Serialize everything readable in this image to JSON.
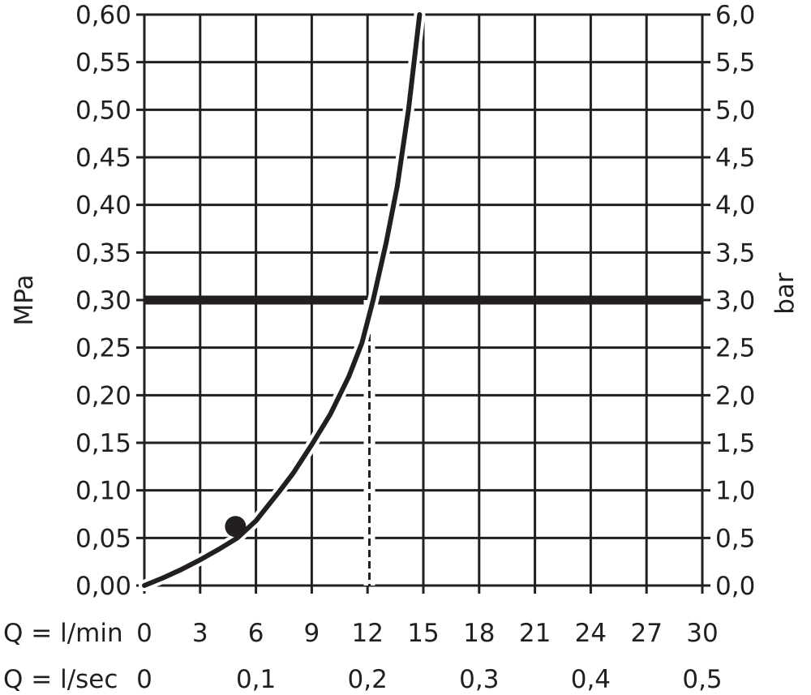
{
  "chart_data": {
    "type": "line",
    "colors": {
      "ink": "#231f20",
      "background": "#ffffff"
    },
    "grid": true,
    "y_left": {
      "label": "MPa",
      "ylim": [
        0,
        0.6
      ],
      "ticks": [
        0,
        0.05,
        0.1,
        0.15,
        0.2,
        0.25,
        0.3,
        0.35,
        0.4,
        0.45,
        0.5,
        0.55,
        0.6
      ],
      "tick_labels": [
        "0,00",
        "0,05",
        "0,10",
        "0,15",
        "0,20",
        "0,25",
        "0,30",
        "0,35",
        "0,40",
        "0,45",
        "0,50",
        "0,55",
        "0,60"
      ]
    },
    "y_right": {
      "label": "bar",
      "ylim": [
        0,
        6
      ],
      "ticks": [
        0,
        0.5,
        1,
        1.5,
        2,
        2.5,
        3,
        3.5,
        4,
        4.5,
        5,
        5.5,
        6
      ],
      "tick_labels": [
        "0,0",
        "0,5",
        "1,0",
        "1,5",
        "2,0",
        "2,5",
        "3,0",
        "3,5",
        "4,0",
        "4,5",
        "5,0",
        "5,5",
        "6,0"
      ]
    },
    "x_primary": {
      "label": "Q = l/min",
      "xlim": [
        0,
        30
      ],
      "ticks": [
        0,
        3,
        6,
        9,
        12,
        15,
        18,
        21,
        24,
        27,
        30
      ],
      "tick_labels": [
        "0",
        "3",
        "6",
        "9",
        "12",
        "15",
        "18",
        "21",
        "24",
        "27",
        "30"
      ]
    },
    "x_secondary": {
      "label": "Q = l/sec",
      "ticks": [
        0,
        0.1,
        0.2,
        0.3,
        0.4,
        0.5
      ],
      "tick_labels": [
        "0",
        "0,1",
        "0,2",
        "0,3",
        "0,4",
        "0,5"
      ]
    },
    "series": [
      {
        "x": [
          0,
          1,
          2,
          3,
          4,
          5,
          6,
          7.3,
          8,
          9,
          10,
          11,
          11.7,
          12.3,
          13,
          13.6,
          14.2,
          14.8
        ],
        "y": [
          0,
          0.008,
          0.017,
          0.027,
          0.038,
          0.05,
          0.068,
          0.1,
          0.118,
          0.148,
          0.18,
          0.22,
          0.255,
          0.3,
          0.36,
          0.42,
          0.5,
          0.6
        ]
      }
    ],
    "marker": {
      "x": 4.9,
      "y": 0.062
    },
    "reference_line": {
      "y": 0.3
    },
    "reference_drop": {
      "x": 12.1,
      "y": 0.3
    }
  }
}
